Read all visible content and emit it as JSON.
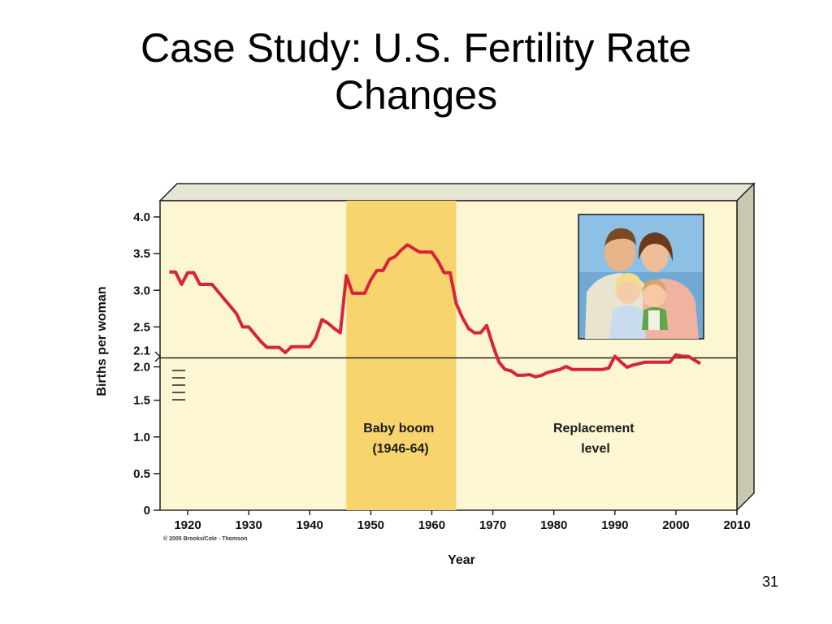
{
  "slide": {
    "title_line1": "Case Study: U.S. Fertility Rate",
    "title_line2": "Changes",
    "page_number": "31"
  },
  "chart_data": {
    "type": "line",
    "title": "",
    "xlabel": "Year",
    "ylabel": "Births per woman",
    "xlim": [
      1917,
      2010
    ],
    "ylim": [
      0,
      4.0
    ],
    "x_ticks": [
      "1920",
      "1930",
      "1940",
      "1950",
      "1960",
      "1970",
      "1980",
      "1990",
      "2000",
      "2010"
    ],
    "y_ticks": [
      "0",
      "0.5",
      "1.0",
      "1.5",
      "2.0",
      "2.1",
      "2.5",
      "3.0",
      "3.5",
      "4.0"
    ],
    "grid": false,
    "series": [
      {
        "color": "#d8243a",
        "x": [
          1917,
          1918,
          1919,
          1920,
          1921,
          1922,
          1923,
          1924,
          1925,
          1926,
          1927,
          1928,
          1929,
          1930,
          1931,
          1932,
          1933,
          1934,
          1935,
          1936,
          1937,
          1938,
          1939,
          1940,
          1941,
          1942,
          1943,
          1944,
          1945,
          1946,
          1947,
          1948,
          1949,
          1950,
          1951,
          1952,
          1953,
          1954,
          1955,
          1956,
          1957,
          1958,
          1959,
          1960,
          1961,
          1962,
          1963,
          1964,
          1965,
          1966,
          1967,
          1968,
          1969,
          1970,
          1971,
          1972,
          1973,
          1974,
          1975,
          1976,
          1977,
          1978,
          1979,
          1980,
          1981,
          1982,
          1983,
          1984,
          1985,
          1986,
          1987,
          1988,
          1989,
          1990,
          1991,
          1992,
          1993,
          1994,
          1995,
          1996,
          1997,
          1998,
          1999,
          2000,
          2001,
          2002,
          2003,
          2004
        ],
        "values": [
          3.25,
          3.25,
          3.08,
          3.24,
          3.24,
          3.08,
          3.08,
          3.08,
          2.98,
          2.88,
          2.78,
          2.68,
          2.5,
          2.5,
          2.4,
          2.3,
          2.22,
          2.22,
          2.22,
          2.15,
          2.23,
          2.23,
          2.23,
          2.23,
          2.35,
          2.6,
          2.55,
          2.48,
          2.42,
          3.2,
          2.96,
          2.96,
          2.96,
          3.14,
          3.27,
          3.27,
          3.42,
          3.46,
          3.55,
          3.62,
          3.57,
          3.52,
          3.52,
          3.52,
          3.4,
          3.24,
          3.24,
          2.82,
          2.63,
          2.48,
          2.42,
          2.42,
          2.52,
          2.25,
          2.02,
          1.92,
          1.9,
          1.84,
          1.84,
          1.85,
          1.82,
          1.84,
          1.88,
          1.9,
          1.92,
          1.96,
          1.92,
          1.92,
          1.92,
          1.92,
          1.92,
          1.92,
          1.94,
          2.1,
          2.02,
          1.95,
          1.98,
          2.0,
          2.02,
          2.02,
          2.02,
          2.02,
          2.02,
          2.12,
          2.1,
          2.1,
          2.05,
          2.0
        ]
      }
    ],
    "reference_line": {
      "value": 2.1,
      "label": "Replacement level"
    },
    "shaded_region": {
      "x_start": 1946,
      "x_end": 1964,
      "label_line1": "Baby boom",
      "label_line2": "(1946-64)"
    },
    "annotation": {
      "line1": "Replacement",
      "line2": "level"
    },
    "credit": "© 2005 Brooks/Cole - Thomson",
    "colors": {
      "plot_bg": "#fdf6d2",
      "band": "#f7d46e",
      "frame": "#cfccb4",
      "line": "#d8243a"
    }
  }
}
